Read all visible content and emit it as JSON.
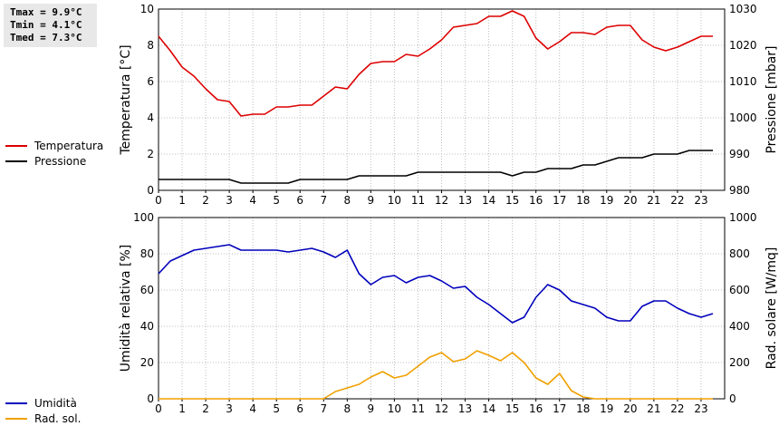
{
  "stats": {
    "tmax_label": "Tmax =",
    "tmax_value": "9.9°C",
    "tmin_label": "Tmin =",
    "tmin_value": "4.1°C",
    "tmed_label": "Tmed =",
    "tmed_value": "7.3°C"
  },
  "legend_top": [
    {
      "label": "Temperatura",
      "color": "#dd0000"
    },
    {
      "label": "Pressione",
      "color": "#000000"
    }
  ],
  "legend_bottom": [
    {
      "label": "Umidità",
      "color": "#0000bb"
    },
    {
      "label": "Rad. sol.",
      "color": "#f0a000"
    }
  ],
  "chart_data": [
    {
      "type": "line",
      "xlabel": "",
      "ylabel": "Temperatura [°C]",
      "y2label": "Pressione [mbar]",
      "xlim": [
        0,
        24
      ],
      "ylim": [
        0,
        10
      ],
      "y2lim": [
        980,
        1030
      ],
      "xticks": [
        "0",
        "1",
        "2",
        "3",
        "4",
        "5",
        "6",
        "7",
        "8",
        "9",
        "10",
        "11",
        "12",
        "13",
        "14",
        "15",
        "16",
        "17",
        "18",
        "19",
        "20",
        "21",
        "22",
        "23"
      ],
      "yticks": [
        "0",
        "2",
        "4",
        "6",
        "8",
        "10"
      ],
      "y2ticks": [
        "980",
        "990",
        "1000",
        "1010",
        "1020",
        "1030"
      ],
      "grid": true,
      "series": [
        {
          "name": "Temperatura",
          "axis": "left",
          "color": "#dd0000",
          "x": [
            0,
            0.5,
            1,
            1.5,
            2,
            2.5,
            3,
            3.5,
            4,
            4.5,
            5,
            5.5,
            6,
            6.5,
            7,
            7.5,
            8,
            8.5,
            9,
            9.5,
            10,
            10.5,
            11,
            11.5,
            12,
            12.5,
            13,
            13.5,
            14,
            14.5,
            15,
            15.5,
            16,
            16.5,
            17,
            17.5,
            18,
            18.5,
            19,
            19.5,
            20,
            20.5,
            21,
            21.5,
            22,
            22.5,
            23,
            23.5
          ],
          "values": [
            8.5,
            7.7,
            6.8,
            6.3,
            5.6,
            5.0,
            4.9,
            4.1,
            4.2,
            4.2,
            4.6,
            4.6,
            4.7,
            4.7,
            5.2,
            5.7,
            5.6,
            6.4,
            7.0,
            7.1,
            7.1,
            7.5,
            7.4,
            7.8,
            8.3,
            9.0,
            9.1,
            9.2,
            9.6,
            9.6,
            9.9,
            9.6,
            8.4,
            7.8,
            8.2,
            8.7,
            8.7,
            8.6,
            9.0,
            9.1,
            9.1,
            8.3,
            7.9,
            7.7,
            7.9,
            8.2,
            8.5,
            8.5
          ]
        },
        {
          "name": "Pressione",
          "axis": "right",
          "color": "#000000",
          "x": [
            0,
            0.5,
            1,
            1.5,
            2,
            2.5,
            3,
            3.5,
            4,
            4.5,
            5,
            5.5,
            6,
            6.5,
            7,
            7.5,
            8,
            8.5,
            9,
            9.5,
            10,
            10.5,
            11,
            11.5,
            12,
            12.5,
            13,
            13.5,
            14,
            14.5,
            15,
            15.5,
            16,
            16.5,
            17,
            17.5,
            18,
            18.5,
            19,
            19.5,
            20,
            20.5,
            21,
            21.5,
            22,
            22.5,
            23,
            23.5
          ],
          "values": [
            983,
            983,
            983,
            983,
            983,
            983,
            983,
            982,
            982,
            982,
            982,
            982,
            983,
            983,
            983,
            983,
            983,
            984,
            984,
            984,
            984,
            984,
            985,
            985,
            985,
            985,
            985,
            985,
            985,
            985,
            984,
            985,
            985,
            986,
            986,
            986,
            987,
            987,
            988,
            989,
            989,
            989,
            990,
            990,
            990,
            991,
            991,
            991
          ]
        }
      ]
    },
    {
      "type": "line",
      "xlabel": "",
      "ylabel": "Umidità relativa [%]",
      "y2label": "Rad. solare [W/mq]",
      "xlim": [
        0,
        24
      ],
      "ylim": [
        0,
        100
      ],
      "y2lim": [
        0,
        1000
      ],
      "xticks": [
        "0",
        "1",
        "2",
        "3",
        "4",
        "5",
        "6",
        "7",
        "8",
        "9",
        "10",
        "11",
        "12",
        "13",
        "14",
        "15",
        "16",
        "17",
        "18",
        "19",
        "20",
        "21",
        "22",
        "23"
      ],
      "yticks": [
        "0",
        "20",
        "40",
        "60",
        "80",
        "100"
      ],
      "y2ticks": [
        "0",
        "200",
        "400",
        "600",
        "800",
        "1000"
      ],
      "grid": true,
      "series": [
        {
          "name": "Umidità",
          "axis": "left",
          "color": "#0000bb",
          "x": [
            0,
            0.5,
            1,
            1.5,
            2,
            2.5,
            3,
            3.5,
            4,
            4.5,
            5,
            5.5,
            6,
            6.5,
            7,
            7.5,
            8,
            8.5,
            9,
            9.5,
            10,
            10.5,
            11,
            11.5,
            12,
            12.5,
            13,
            13.5,
            14,
            14.5,
            15,
            15.5,
            16,
            16.5,
            17,
            17.5,
            18,
            18.5,
            19,
            19.5,
            20,
            20.5,
            21,
            21.5,
            22,
            22.5,
            23,
            23.5
          ],
          "values": [
            69,
            76,
            79,
            82,
            83,
            84,
            85,
            82,
            82,
            82,
            82,
            81,
            82,
            83,
            81,
            78,
            82,
            69,
            63,
            67,
            68,
            64,
            67,
            68,
            65,
            61,
            62,
            56,
            52,
            47,
            42,
            45,
            56,
            63,
            60,
            54,
            52,
            50,
            45,
            43,
            43,
            51,
            54,
            54,
            50,
            47,
            45,
            47
          ]
        },
        {
          "name": "Rad. sol.",
          "axis": "right",
          "color": "#f0a000",
          "x": [
            0,
            0.5,
            1,
            1.5,
            2,
            2.5,
            3,
            3.5,
            4,
            4.5,
            5,
            5.5,
            6,
            6.5,
            7,
            7.5,
            8,
            8.5,
            9,
            9.5,
            10,
            10.5,
            11,
            11.5,
            12,
            12.5,
            13,
            13.5,
            14,
            14.5,
            15,
            15.5,
            16,
            16.5,
            17,
            17.5,
            18,
            18.5,
            19,
            19.5,
            20,
            20.5,
            21,
            21.5,
            22,
            22.5,
            23,
            23.5
          ],
          "values": [
            0,
            0,
            0,
            0,
            0,
            0,
            0,
            0,
            0,
            0,
            0,
            0,
            0,
            0,
            0,
            40,
            60,
            80,
            120,
            150,
            115,
            130,
            180,
            230,
            255,
            205,
            220,
            265,
            240,
            210,
            255,
            200,
            115,
            80,
            140,
            45,
            10,
            0,
            0,
            0,
            0,
            0,
            0,
            0,
            0,
            0,
            0,
            0
          ]
        }
      ]
    }
  ]
}
